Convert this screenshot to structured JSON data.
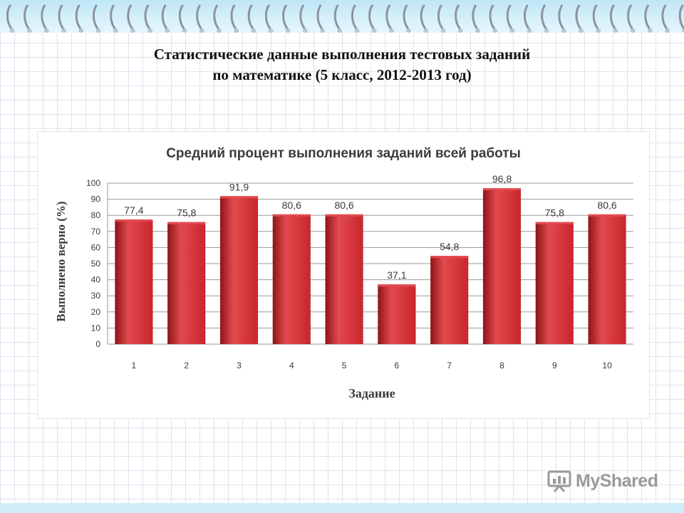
{
  "slide": {
    "title_line1": "Статистические данные выполнения тестовых заданий",
    "title_line2": "по математике (5 класс, 2012-2013 год)"
  },
  "watermark": {
    "text": "MyShared",
    "icon": "presentation-board-icon"
  },
  "colors": {
    "bar": "#c8262c",
    "bar_dark": "#8e1418",
    "bar_light": "#e14a4e",
    "grid": "#999999",
    "axis_text": "#3b3b3b"
  },
  "chart_data": {
    "type": "bar",
    "title": "Средний  процент выполнения заданий всей работы",
    "xlabel": "Задание",
    "ylabel": "Выполнено верно (%)",
    "categories": [
      "1",
      "2",
      "3",
      "4",
      "5",
      "6",
      "7",
      "8",
      "9",
      "10"
    ],
    "values": [
      77.4,
      75.8,
      91.9,
      80.6,
      80.6,
      37.1,
      54.8,
      96.8,
      75.8,
      80.6
    ],
    "value_labels": [
      "77,4",
      "75,8",
      "91,9",
      "80,6",
      "80,6",
      "37,1",
      "54,8",
      "96,8",
      "75,8",
      "80,6"
    ],
    "ylim": [
      0,
      100
    ],
    "yticks": [
      0,
      10,
      20,
      30,
      40,
      50,
      60,
      70,
      80,
      90,
      100
    ],
    "grid": true,
    "legend": "none"
  }
}
